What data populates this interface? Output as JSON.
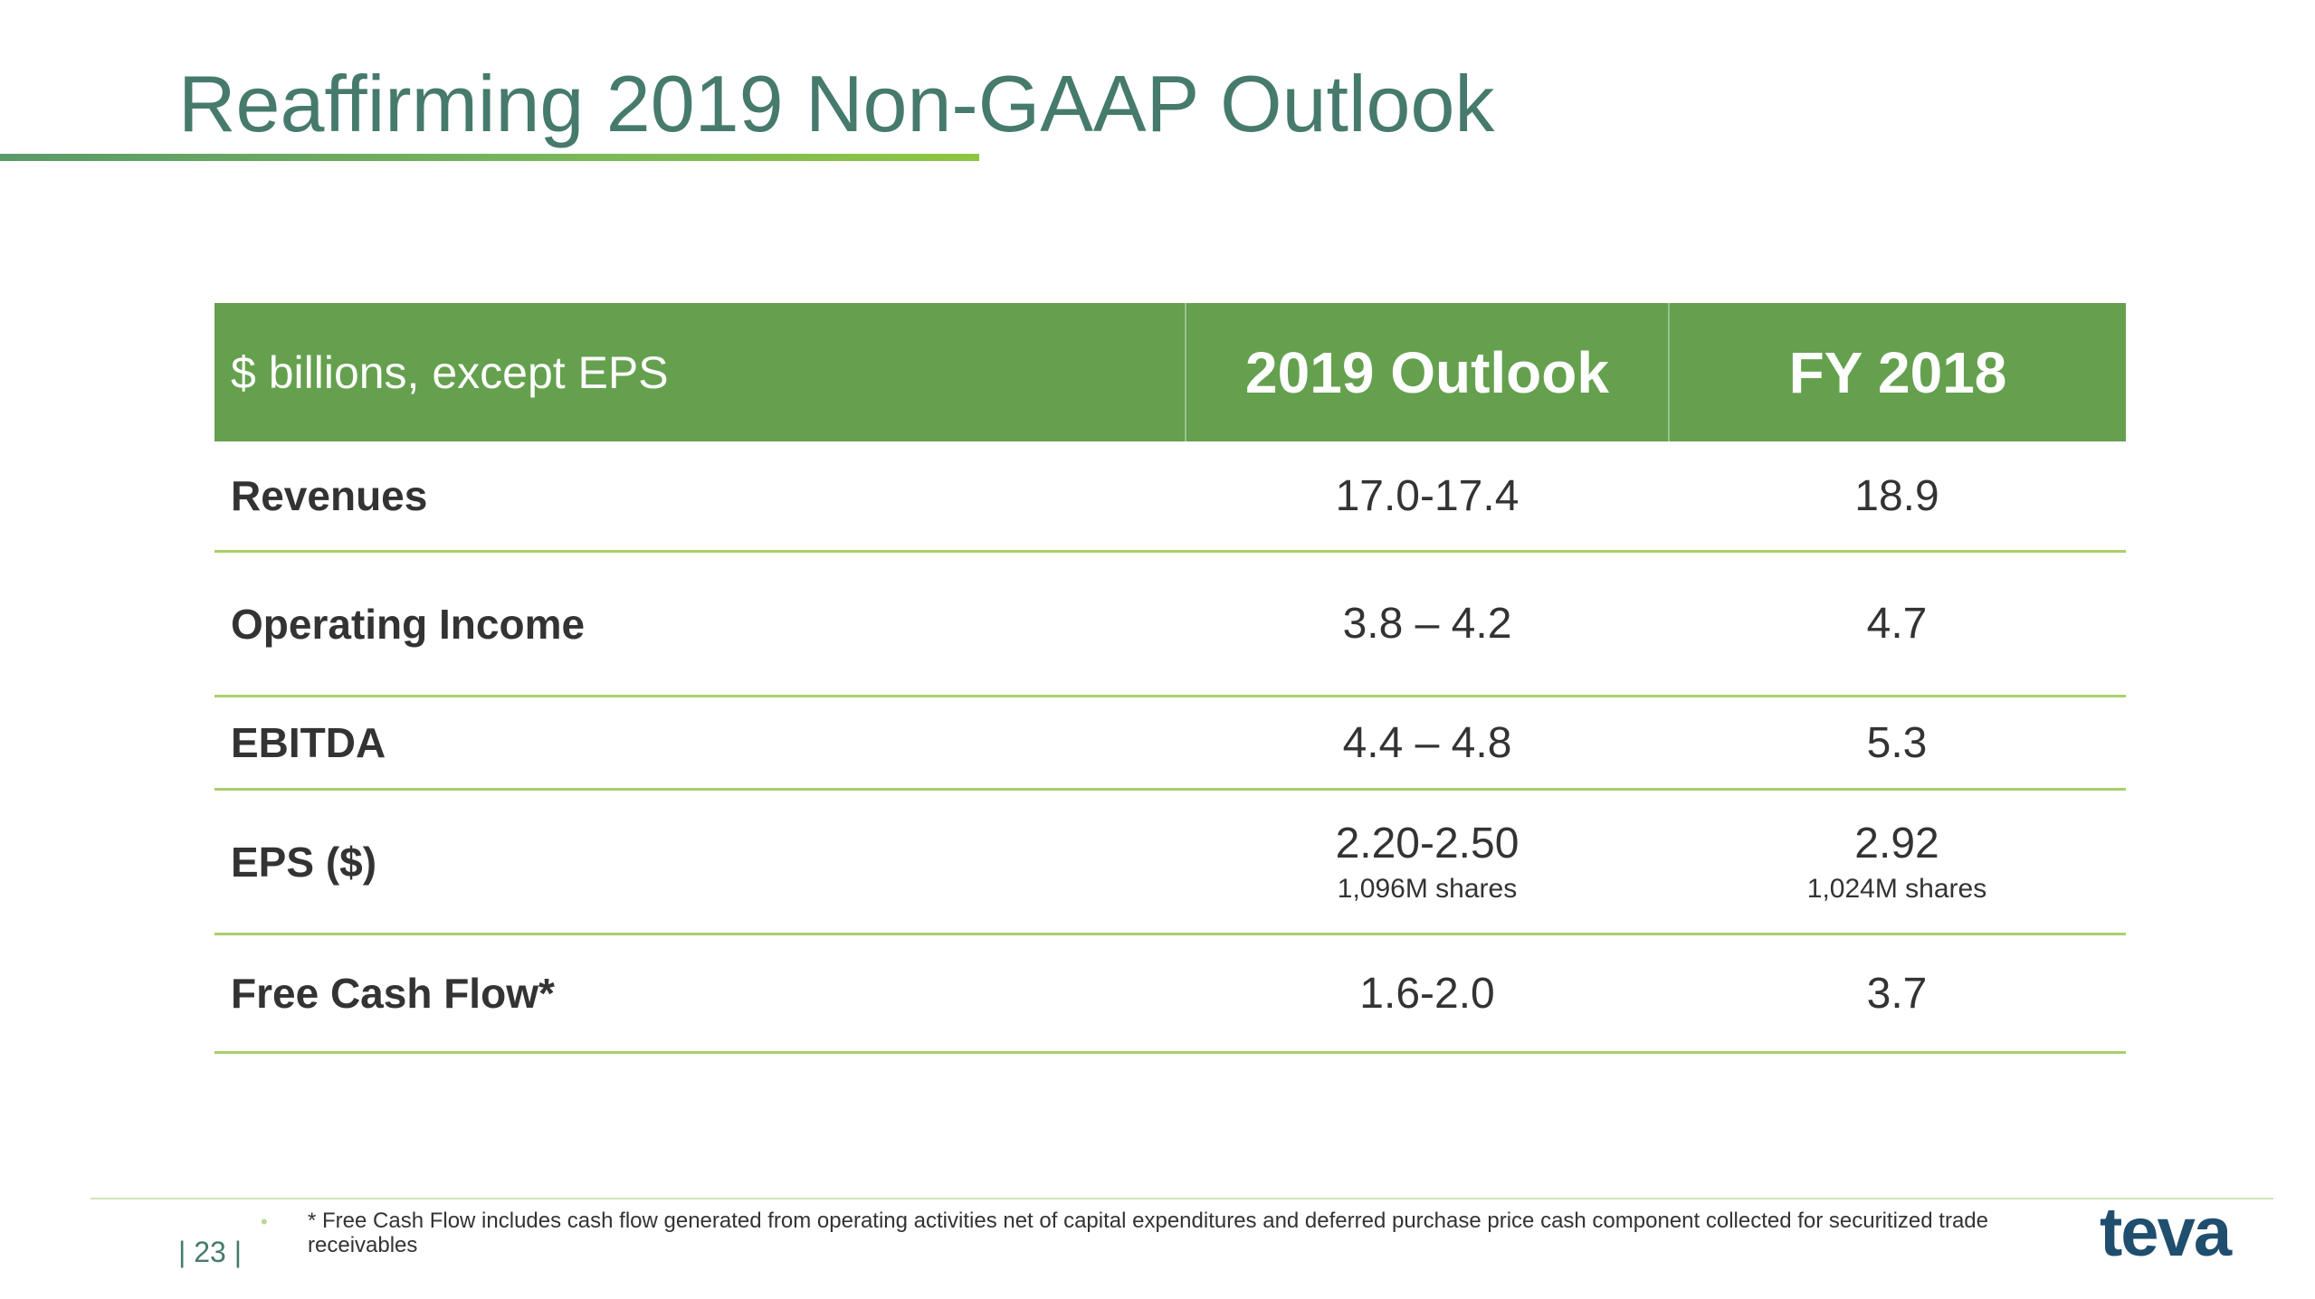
{
  "slide": {
    "title": "Reaffirming 2019 Non-GAAP Outlook",
    "page_number": "| 23 |",
    "footnote": "* Free Cash Flow includes cash flow generated from operating activities net of capital expenditures and deferred purchase price cash component collected for securitized trade receivables",
    "logo_text": "teva"
  },
  "table": {
    "header": {
      "label": "$ billions, except EPS",
      "col1": "2019 Outlook",
      "col2": "FY 2018"
    },
    "rows": [
      {
        "label": "Revenues",
        "outlook": "17.0-17.4",
        "fy2018": "18.9"
      },
      {
        "label": "Operating Income",
        "outlook": "3.8 – 4.2",
        "fy2018": "4.7"
      },
      {
        "label": "EBITDA",
        "outlook": "4.4 – 4.8",
        "fy2018": "5.3"
      },
      {
        "label": "EPS ($)",
        "outlook": "2.20-2.50",
        "outlook_note": "1,096M shares",
        "fy2018": "2.92",
        "fy2018_note": "1,024M shares"
      },
      {
        "label": "Free Cash Flow*",
        "outlook": "1.6-2.0",
        "fy2018": "3.7"
      }
    ]
  },
  "colors": {
    "title": "#467a6c",
    "header_bg": "#65a04e",
    "row_rule": "#a9cf6b",
    "logo": "#1f4e6e"
  }
}
